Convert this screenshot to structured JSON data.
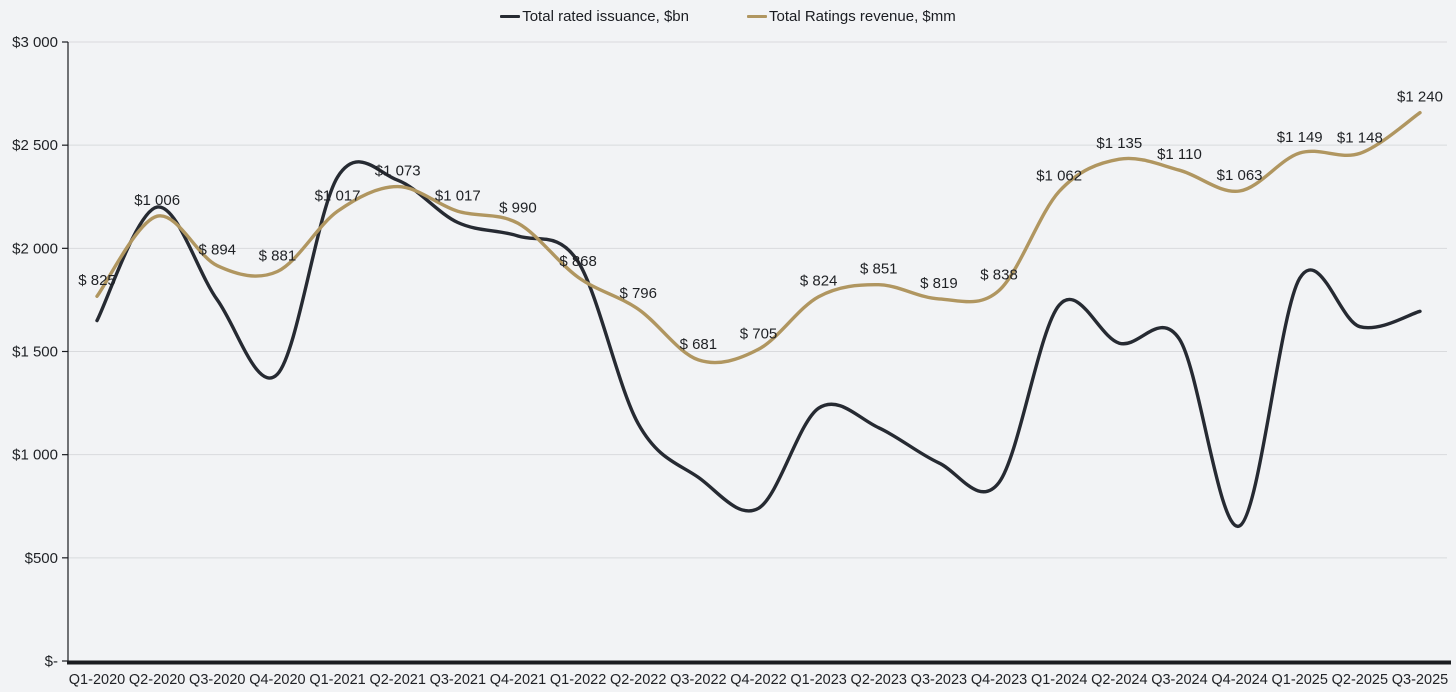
{
  "colors": {
    "issuance_line": "#262a32",
    "revenue_line": "#b09660",
    "text": "#1f2125",
    "axis": "#1a1c20",
    "gridline": "#d9dadd",
    "background": "#f2f3f5"
  },
  "legend": {
    "position": "top-center",
    "items": [
      {
        "label": "Total rated issuance, $bn",
        "color": "#262a32"
      },
      {
        "label": "Total Ratings revenue, $mm",
        "color": "#b09660"
      }
    ]
  },
  "chart_data": {
    "type": "line",
    "smooth": true,
    "grid": true,
    "legend_position": "top-center",
    "categories": [
      "Q1-2020",
      "Q2-2020",
      "Q3-2020",
      "Q4-2020",
      "Q1-2021",
      "Q2-2021",
      "Q3-2021",
      "Q4-2021",
      "Q1-2022",
      "Q2-2022",
      "Q3-2022",
      "Q4-2022",
      "Q1-2023",
      "Q2-2023",
      "Q3-2023",
      "Q4-2023",
      "Q1-2024",
      "Q2-2024",
      "Q3-2024",
      "Q4-2024",
      "Q1-2025",
      "Q2-2025",
      "Q3-2025"
    ],
    "y_axis": {
      "ticks": [
        "$-",
        "$500",
        "$1 000",
        "$1 500",
        "$2 000",
        "$2 500",
        "$3 000"
      ],
      "tick_values": [
        0,
        500,
        1000,
        1500,
        2000,
        2500,
        3000
      ],
      "max": 3000
    },
    "secondary_axis": {
      "visible": false,
      "max": 1400
    },
    "series": [
      {
        "name": "Total rated issuance, $bn",
        "axis": "primary",
        "color": "#262a32",
        "values": [
          1650,
          2200,
          1750,
          1390,
          2345,
          2330,
          2125,
          2060,
          1935,
          1150,
          890,
          740,
          1225,
          1130,
          960,
          865,
          1725,
          1540,
          1560,
          655,
          1855,
          1620,
          1695
        ]
      },
      {
        "name": "Total Ratings revenue, $mm",
        "axis": "secondary",
        "color": "#b09660",
        "values": [
          825,
          1006,
          894,
          881,
          1017,
          1073,
          1017,
          990,
          868,
          796,
          681,
          705,
          824,
          851,
          819,
          838,
          1062,
          1135,
          1110,
          1063,
          1149,
          1148,
          1240
        ],
        "data_labels": [
          "$ 825",
          "$1 006",
          "$ 894",
          "$ 881",
          "$1 017",
          "$1 073",
          "$1 017",
          "$ 990",
          "$ 868",
          "$ 796",
          "$ 681",
          "$ 705",
          "$ 824",
          "$ 851",
          "$ 819",
          "$ 838",
          "$1 062",
          "$1 135",
          "$1 110",
          "$1 063",
          "$1 149",
          "$1 148",
          "$1 240"
        ]
      }
    ]
  }
}
